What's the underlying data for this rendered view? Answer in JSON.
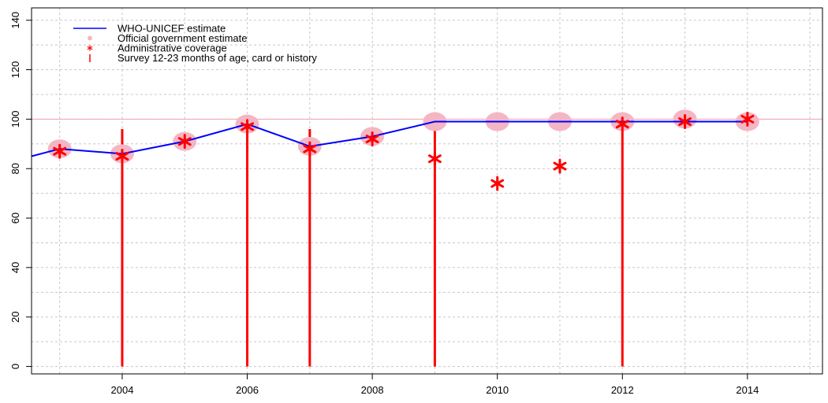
{
  "chart_data": {
    "type": "line",
    "x": [
      2003,
      2004,
      2005,
      2006,
      2007,
      2008,
      2009,
      2010,
      2011,
      2012,
      2013,
      2014
    ],
    "xlim": [
      2002.55,
      2015.2
    ],
    "ylim": [
      -3,
      145
    ],
    "x_ticks": [
      2004,
      2006,
      2008,
      2010,
      2012,
      2014
    ],
    "y_ticks": [
      0,
      20,
      40,
      60,
      80,
      100,
      120,
      140
    ],
    "grid": true,
    "reference_line": 100,
    "legend_position": "top-left",
    "series": [
      {
        "name": "WHO-UNICEF estimate",
        "kind": "line",
        "color": "#0000ff",
        "x_start": 2002.55,
        "y_start": 85,
        "x": [
          2003,
          2004,
          2005,
          2006,
          2007,
          2008,
          2009,
          2010,
          2011,
          2012,
          2013,
          2014
        ],
        "values": [
          88,
          86,
          91,
          98,
          89,
          93,
          99,
          99,
          99,
          99,
          99,
          99
        ]
      },
      {
        "name": "Official government estimate",
        "kind": "points",
        "color": "#f4b6c2",
        "x": [
          2003,
          2004,
          2005,
          2006,
          2007,
          2008,
          2009,
          2010,
          2011,
          2012,
          2013,
          2014
        ],
        "values": [
          88,
          86,
          91,
          98,
          89,
          93,
          99,
          99,
          99,
          99,
          100,
          99
        ]
      },
      {
        "name": "Administrative coverage",
        "kind": "asterisk",
        "color": "#ff0000",
        "x": [
          2003,
          2004,
          2005,
          2006,
          2007,
          2008,
          2009,
          2010,
          2011,
          2012,
          2013,
          2014
        ],
        "values": [
          87,
          85,
          91,
          97,
          88,
          92,
          84,
          74,
          81,
          98,
          99,
          100
        ]
      },
      {
        "name": "Survey 12-23 months of age, card or history",
        "kind": "vline",
        "color": "#ff0000",
        "x": [
          2004,
          2006,
          2007,
          2009,
          2012
        ],
        "values": [
          96,
          98,
          96,
          99,
          99
        ]
      }
    ],
    "colors": {
      "grid": "#c8c8c8",
      "axis": "#000000",
      "reference_line": "#f4a0b0"
    }
  }
}
